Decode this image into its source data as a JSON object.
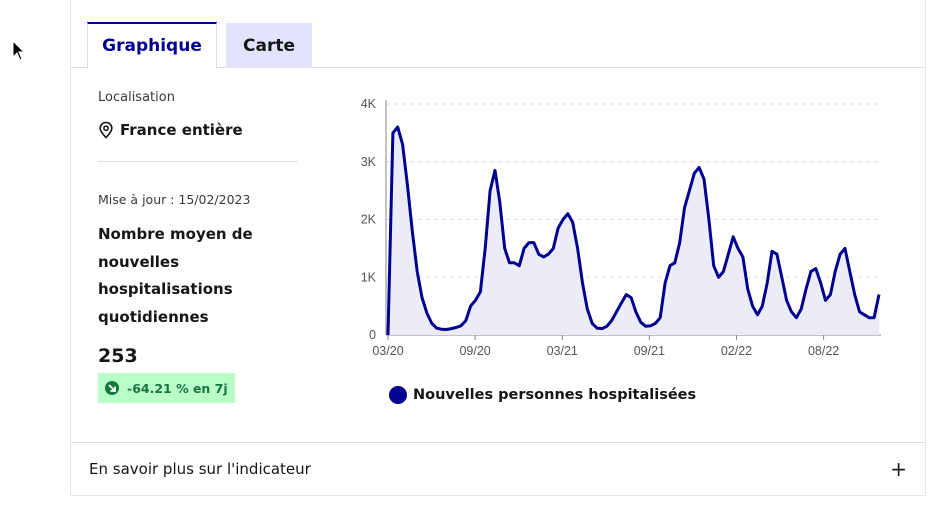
{
  "tabs": {
    "graph_label": "Graphique",
    "map_label": "Carte"
  },
  "location": {
    "label": "Localisation",
    "value": "France entière",
    "icon": "map-pin-icon"
  },
  "indicator": {
    "updated": "Mise à jour : 15/02/2023",
    "title": "Nombre moyen de nouvelles hospitalisations quotidiennes",
    "value": "253",
    "trend": "-64.21 % en 7j",
    "trend_icon": "arrow-down-right-icon",
    "trend_color": "#18753c",
    "trend_bg": "#b8fec9"
  },
  "chart_data": {
    "type": "area",
    "x_ticks": [
      "03/20",
      "09/20",
      "03/21",
      "09/21",
      "02/22",
      "08/22"
    ],
    "y_ticks": [
      "0",
      "1K",
      "2K",
      "3K",
      "4K"
    ],
    "ylim": [
      0,
      4000
    ],
    "grid": true,
    "legend_position": "bottom",
    "series": [
      {
        "name": "Nouvelles personnes hospitalisées",
        "color": "#000091",
        "values": [
          0,
          3500,
          3600,
          3300,
          2600,
          1800,
          1100,
          650,
          380,
          200,
          120,
          100,
          95,
          110,
          130,
          160,
          250,
          500,
          600,
          750,
          1500,
          2500,
          2850,
          2300,
          1500,
          1250,
          1250,
          1200,
          1500,
          1600,
          1600,
          1400,
          1350,
          1400,
          1500,
          1850,
          2000,
          2100,
          1950,
          1500,
          900,
          450,
          200,
          120,
          110,
          150,
          250,
          400,
          550,
          700,
          650,
          400,
          220,
          150,
          160,
          200,
          300,
          900,
          1200,
          1250,
          1600,
          2200,
          2500,
          2800,
          2900,
          2700,
          2000,
          1200,
          1000,
          1100,
          1400,
          1700,
          1500,
          1350,
          800,
          500,
          350,
          500,
          900,
          1450,
          1400,
          1000,
          600,
          400,
          300,
          450,
          800,
          1100,
          1150,
          900,
          600,
          700,
          1100,
          1400,
          1500,
          1100,
          700,
          400,
          350,
          300,
          300,
          700
        ]
      }
    ]
  },
  "footer": {
    "label": "En savoir plus sur l'indicateur",
    "expand_icon": "plus-icon"
  }
}
